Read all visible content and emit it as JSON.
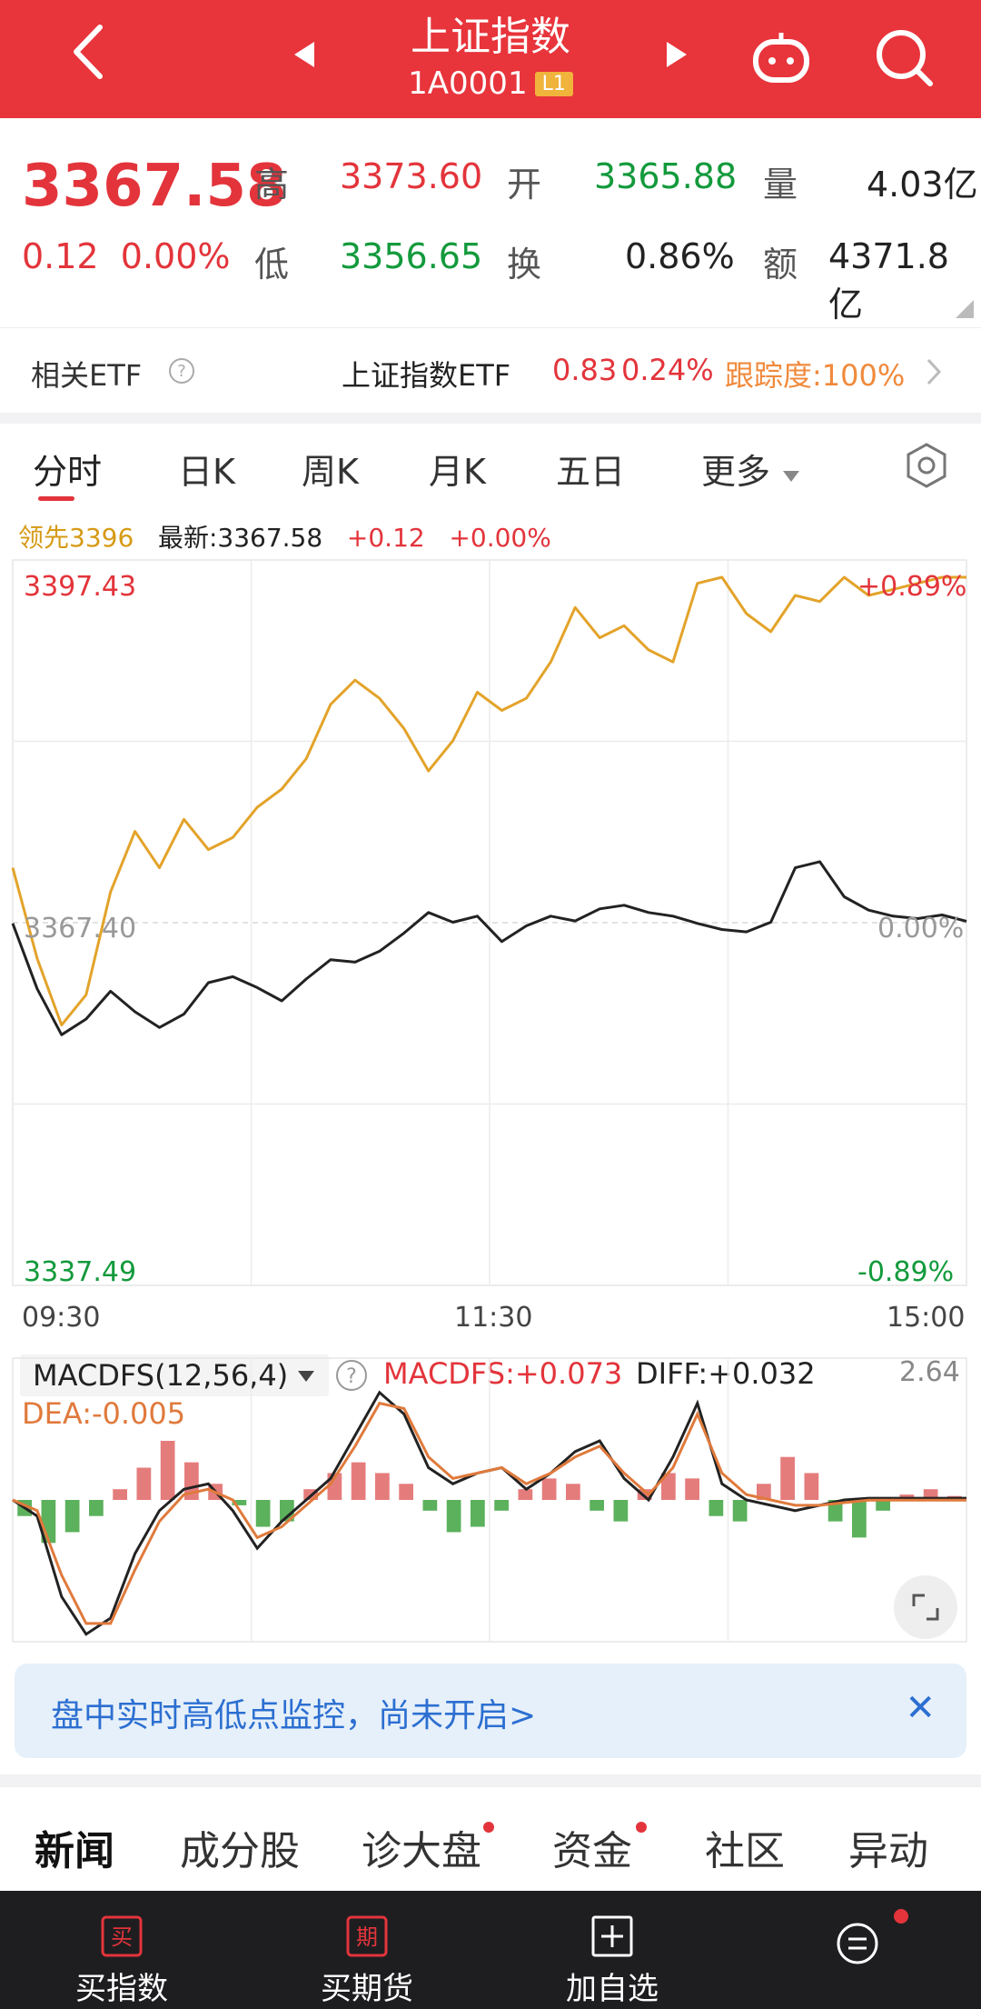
{
  "header": {
    "title": "上证指数",
    "code": "1A0001",
    "level_badge": "L1",
    "icons": [
      "back-arrow-icon",
      "prev-triangle-icon",
      "next-triangle-icon",
      "robot-assistant-icon",
      "search-icon"
    ]
  },
  "quote": {
    "price": "3367.58",
    "change": "0.12",
    "change_pct": "0.00%",
    "high_label": "高",
    "high": "3373.60",
    "open_label": "开",
    "open": "3365.88",
    "volume_label": "量",
    "volume": "4.03亿",
    "low_label": "低",
    "low": "3356.65",
    "turnover_label": "换",
    "turnover": "0.86%",
    "amount_label": "额",
    "amount": "4371.8亿"
  },
  "etf": {
    "label": "相关ETF",
    "name": "上证指数ETF",
    "price": "0.83",
    "pct": "0.24%",
    "tracking": "跟踪度:100%"
  },
  "tabs": [
    "分时",
    "日K",
    "周K",
    "月K",
    "五日",
    "更多"
  ],
  "chart_info": {
    "leader": "领先3396",
    "latest": "最新:3367.58",
    "chg": "+0.12",
    "pct": "+0.00%"
  },
  "chart_labels": {
    "top_price": "3397.43",
    "mid_price": "3367.40",
    "bottom_price": "3337.49",
    "top_pct": "+0.89%",
    "mid_pct": "0.00%",
    "bottom_pct": "-0.89%",
    "times": [
      "09:30",
      "11:30",
      "15:00"
    ]
  },
  "macd": {
    "selector": "MACDFS(12,56,4)",
    "macdfs": "MACDFS:+0.073",
    "diff": "DIFF:+0.032",
    "dea": "DEA:-0.005",
    "max": "2.64"
  },
  "monitor": {
    "text": "盘中实时高低点监控，尚未开启>"
  },
  "news_tabs": [
    "新闻",
    "成分股",
    "诊大盘",
    "资金",
    "社区",
    "异动"
  ],
  "bottom": {
    "items": [
      "买指数",
      "买期货",
      "加自选"
    ],
    "icon_chars": [
      "买",
      "期"
    ]
  },
  "chart_data": [
    {
      "type": "line",
      "title": "",
      "xlabel": "",
      "ylabel": "",
      "x_ticks": [
        "09:30",
        "11:30",
        "15:00"
      ],
      "ylim": [
        3337.49,
        3397.43
      ],
      "series": [
        {
          "name": "",
          "color": "#222222",
          "values": [
            3367.4,
            3362.0,
            3358.2,
            3359.5,
            3361.8,
            3360.1,
            3358.8,
            3359.9,
            3362.5,
            3363.0,
            3362.1,
            3361.0,
            3362.8,
            3364.4,
            3364.2,
            3365.1,
            3366.6,
            3368.3,
            3367.5,
            3368.0,
            3365.9,
            3367.2,
            3368.0,
            3367.6,
            3368.6,
            3368.9,
            3368.3,
            3368.0,
            3367.4,
            3366.9,
            3366.7,
            3367.5,
            3372.0,
            3372.5,
            3369.6,
            3368.5,
            3368.0,
            3367.8,
            3368.1,
            3367.58
          ]
        },
        {
          "name": "",
          "color": "#e3a32a",
          "values": [
            3372.0,
            3364.5,
            3359.0,
            3361.5,
            3370.0,
            3375.0,
            3372.0,
            3376.0,
            3373.5,
            3374.5,
            3377.0,
            3378.5,
            3381.0,
            3385.5,
            3387.5,
            3386.0,
            3383.5,
            3380.0,
            3382.5,
            3386.5,
            3385.0,
            3386.0,
            3389.0,
            3393.5,
            3391.0,
            3392.0,
            3390.0,
            3389.0,
            3395.5,
            3396.0,
            3393.0,
            3391.5,
            3394.5,
            3394.0,
            3396.0,
            3394.5,
            3395.0,
            3395.5,
            3396.0,
            3396.0
          ]
        }
      ]
    },
    {
      "type": "bar",
      "title": "",
      "xlabel": "",
      "ylabel": "",
      "ylim": [
        -2.64,
        2.64
      ],
      "series": [
        {
          "name": "MACDFS",
          "values": [
            -0.3,
            -0.8,
            -0.6,
            -0.3,
            0.2,
            0.6,
            1.1,
            0.7,
            0.3,
            -0.1,
            -0.5,
            -0.4,
            0.2,
            0.5,
            0.7,
            0.5,
            0.3,
            -0.2,
            -0.6,
            -0.5,
            -0.2,
            0.2,
            0.4,
            0.3,
            -0.2,
            -0.4,
            0.2,
            0.5,
            0.4,
            -0.3,
            -0.4,
            0.3,
            0.8,
            0.5,
            -0.4,
            -0.7,
            -0.2,
            0.1,
            0.2,
            0.073
          ]
        },
        {
          "name": "DIFF",
          "color": "#222222",
          "values": [
            0.0,
            -0.3,
            -1.8,
            -2.5,
            -2.2,
            -1.0,
            -0.2,
            0.2,
            0.3,
            -0.2,
            -0.9,
            -0.4,
            0.0,
            0.4,
            1.2,
            2.0,
            1.6,
            0.6,
            0.3,
            0.5,
            0.6,
            0.2,
            0.5,
            0.9,
            1.1,
            0.4,
            0.0,
            0.8,
            1.8,
            0.3,
            0.0,
            -0.1,
            -0.2,
            -0.1,
            0.0,
            0.032,
            0.032,
            0.032,
            0.032,
            0.032
          ]
        },
        {
          "name": "DEA",
          "color": "#e07a3c",
          "values": [
            0.0,
            -0.2,
            -1.4,
            -2.3,
            -2.3,
            -1.3,
            -0.4,
            0.1,
            0.2,
            0.0,
            -0.7,
            -0.5,
            -0.1,
            0.3,
            1.0,
            1.8,
            1.7,
            0.8,
            0.4,
            0.5,
            0.6,
            0.3,
            0.5,
            0.8,
            1.0,
            0.5,
            0.1,
            0.6,
            1.6,
            0.5,
            0.1,
            0.0,
            -0.1,
            -0.1,
            -0.05,
            -0.005,
            -0.005,
            -0.005,
            -0.005,
            -0.005
          ]
        }
      ]
    }
  ]
}
